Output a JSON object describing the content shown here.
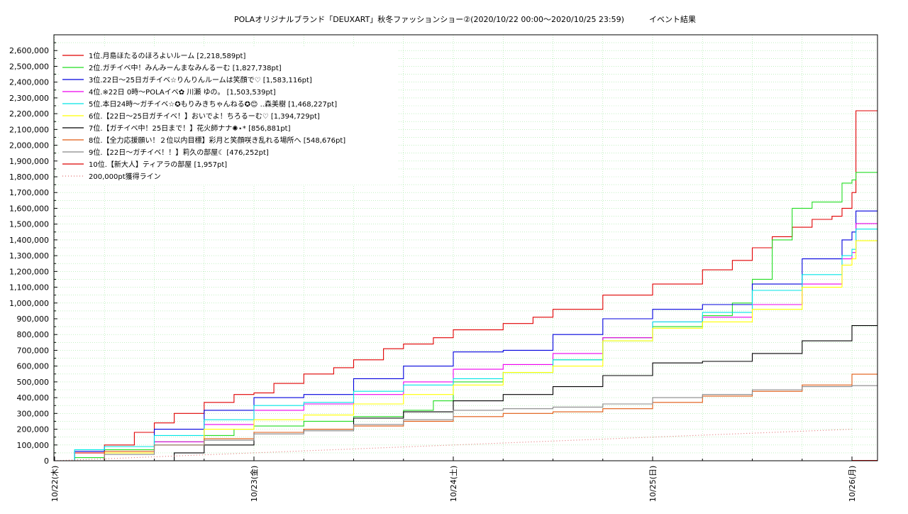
{
  "chart_data": {
    "type": "line",
    "title": "POLAオリジナルブランド「DEUXART」秋冬ファッションショー②(2020/10/22 00:00〜2020/10/25 23:59)",
    "subtitle": "イベント結果",
    "xlabel": "",
    "ylabel": "",
    "x_ticks": [
      "10/22(木)",
      "10/23(金)",
      "10/24(土)",
      "10/25(日)",
      "10/26(月)"
    ],
    "x_range_days": [
      0,
      4.13
    ],
    "ylim": [
      0,
      2700000
    ],
    "y_ticks": [
      "0",
      "100,000",
      "200,000",
      "300,000",
      "400,000",
      "500,000",
      "600,000",
      "700,000",
      "800,000",
      "900,000",
      "1,000,000",
      "1,100,000",
      "1,200,000",
      "1,300,000",
      "1,400,000",
      "1,500,000",
      "1,600,000",
      "1,700,000",
      "1,800,000",
      "1,900,000",
      "2,000,000",
      "2,100,000",
      "2,200,000",
      "2,300,000",
      "2,400,000",
      "2,500,000",
      "2,600,000"
    ],
    "grid": true,
    "legend_position": "top-left",
    "series": [
      {
        "name": "1位.月島ほたるのほろよいルーム [2,218,589pt]",
        "color": "#e00000",
        "dash": "",
        "x": [
          0,
          0.1,
          0.25,
          0.4,
          0.5,
          0.6,
          0.75,
          0.9,
          1.0,
          1.1,
          1.25,
          1.4,
          1.5,
          1.65,
          1.75,
          1.9,
          2.0,
          2.1,
          2.25,
          2.4,
          2.5,
          2.75,
          3.0,
          3.25,
          3.4,
          3.5,
          3.6,
          3.7,
          3.8,
          3.9,
          3.95,
          4.0,
          4.02,
          4.13
        ],
        "y": [
          0,
          50000,
          100000,
          180000,
          240000,
          300000,
          370000,
          420000,
          430000,
          490000,
          550000,
          590000,
          640000,
          710000,
          740000,
          780000,
          830000,
          830000,
          870000,
          910000,
          960000,
          1050000,
          1120000,
          1210000,
          1270000,
          1350000,
          1420000,
          1480000,
          1530000,
          1550000,
          1600000,
          1700000,
          2218589,
          2218589
        ]
      },
      {
        "name": "2位.ガチイベ中！みんみーんまなみんるーむ [1,827,738pt]",
        "color": "#22dd22",
        "dash": "",
        "x": [
          0,
          0.1,
          0.25,
          0.5,
          0.75,
          0.9,
          1.0,
          1.25,
          1.5,
          1.75,
          1.9,
          2.0,
          2.25,
          2.5,
          2.75,
          3.0,
          3.25,
          3.4,
          3.5,
          3.6,
          3.7,
          3.8,
          3.95,
          4.0,
          4.02,
          4.13
        ],
        "y": [
          0,
          20000,
          70000,
          120000,
          160000,
          200000,
          220000,
          250000,
          280000,
          320000,
          380000,
          500000,
          560000,
          640000,
          780000,
          850000,
          920000,
          1000000,
          1150000,
          1400000,
          1600000,
          1640000,
          1760000,
          1780000,
          1827738,
          1827738
        ]
      },
      {
        "name": "3位.22日〜25日ガチイベ☆りんりんルームは笑顔で♡ [1,583,116pt]",
        "color": "#0000dd",
        "dash": "",
        "x": [
          0,
          0.1,
          0.25,
          0.5,
          0.75,
          1.0,
          1.25,
          1.5,
          1.75,
          2.0,
          2.25,
          2.5,
          2.75,
          3.0,
          3.25,
          3.5,
          3.75,
          3.95,
          4.0,
          4.02,
          4.13
        ],
        "y": [
          0,
          60000,
          90000,
          200000,
          320000,
          400000,
          420000,
          520000,
          600000,
          690000,
          700000,
          800000,
          900000,
          960000,
          990000,
          1120000,
          1280000,
          1400000,
          1450000,
          1583116,
          1583116
        ]
      },
      {
        "name": "4位.※22日 0時〜POLAイベ✿ 川瀬 ゆの。 [1,503,539pt]",
        "color": "#ee00ee",
        "dash": "",
        "x": [
          0,
          0.25,
          0.5,
          0.75,
          1.0,
          1.25,
          1.5,
          1.75,
          2.0,
          2.25,
          2.5,
          2.75,
          3.0,
          3.25,
          3.5,
          3.75,
          3.95,
          4.0,
          4.02,
          4.13
        ],
        "y": [
          0,
          50000,
          120000,
          230000,
          320000,
          360000,
          420000,
          500000,
          580000,
          610000,
          680000,
          780000,
          880000,
          910000,
          990000,
          1120000,
          1280000,
          1320000,
          1503539,
          1503539
        ]
      },
      {
        "name": "5位.本日24時〜ガチイベ☆✪もりみきちゃんねる✪😊 ..森美樹 [1,468,227pt]",
        "color": "#00e5e5",
        "dash": "",
        "x": [
          0,
          0.1,
          0.25,
          0.5,
          0.75,
          1.0,
          1.25,
          1.5,
          1.75,
          2.0,
          2.25,
          2.5,
          2.75,
          3.0,
          3.25,
          3.5,
          3.75,
          3.95,
          4.0,
          4.02,
          4.13
        ],
        "y": [
          0,
          70000,
          90000,
          160000,
          260000,
          350000,
          370000,
          440000,
          480000,
          520000,
          560000,
          640000,
          760000,
          880000,
          940000,
          1080000,
          1180000,
          1300000,
          1340000,
          1468227,
          1468227
        ]
      },
      {
        "name": "6位.【22日〜25日ガチイベ！】おいでよ！ちろるーむ♡ [1,394,729pt]",
        "color": "#ffff00",
        "dash": "",
        "x": [
          0,
          0.25,
          0.5,
          0.75,
          1.0,
          1.25,
          1.5,
          1.75,
          2.0,
          2.25,
          2.5,
          2.75,
          3.0,
          3.25,
          3.5,
          3.75,
          3.95,
          4.0,
          4.02,
          4.13
        ],
        "y": [
          0,
          50000,
          100000,
          200000,
          260000,
          290000,
          360000,
          420000,
          480000,
          560000,
          600000,
          760000,
          840000,
          880000,
          960000,
          1100000,
          1240000,
          1280000,
          1394729,
          1394729
        ]
      },
      {
        "name": "7位.【ガチイベ中！25日まで！】花火師ナナ✺⋆* [856,881pt]",
        "color": "#000000",
        "dash": "",
        "x": [
          0,
          0.4,
          0.6,
          0.75,
          1.0,
          1.25,
          1.5,
          1.75,
          2.0,
          2.25,
          2.5,
          2.75,
          3.0,
          3.25,
          3.5,
          3.75,
          4.0,
          4.13
        ],
        "y": [
          0,
          0,
          50000,
          100000,
          180000,
          200000,
          270000,
          310000,
          380000,
          420000,
          470000,
          540000,
          620000,
          630000,
          680000,
          760000,
          856881,
          856881
        ]
      },
      {
        "name": "8位.【全力応援願い！２位以内目標】彩月と笑顔咲き乱れる場所へ [548,676pt]",
        "color": "#e05a10",
        "dash": "",
        "x": [
          0,
          0.25,
          0.5,
          0.75,
          1.0,
          1.25,
          1.5,
          1.75,
          2.0,
          2.25,
          2.5,
          2.75,
          3.0,
          3.25,
          3.5,
          3.75,
          4.0,
          4.13
        ],
        "y": [
          0,
          60000,
          100000,
          140000,
          180000,
          200000,
          220000,
          250000,
          280000,
          300000,
          310000,
          330000,
          370000,
          410000,
          440000,
          480000,
          548676,
          548676
        ]
      },
      {
        "name": "9位.【22日〜ガチイベ！！】莉久の部屋☾ [476,252pt]",
        "color": "#888888",
        "dash": "",
        "x": [
          0,
          0.25,
          0.5,
          0.75,
          1.0,
          1.25,
          1.5,
          1.75,
          2.0,
          2.25,
          2.5,
          2.75,
          3.0,
          3.25,
          3.5,
          3.75,
          4.0,
          4.13
        ],
        "y": [
          0,
          40000,
          100000,
          130000,
          170000,
          190000,
          230000,
          260000,
          320000,
          330000,
          340000,
          360000,
          400000,
          420000,
          450000,
          470000,
          476252,
          476252
        ]
      },
      {
        "name": "10位.【新大人】ティアラの部屋 [1,957pt]",
        "color": "#dd0000",
        "dash": "",
        "x": [
          0,
          4.0,
          4.13
        ],
        "y": [
          0,
          1957,
          1957
        ]
      },
      {
        "name": "200,000pt獲得ライン",
        "color": "#e07070",
        "dash": "1,3",
        "x": [
          0,
          4.0
        ],
        "y": [
          0,
          200000
        ]
      }
    ]
  }
}
